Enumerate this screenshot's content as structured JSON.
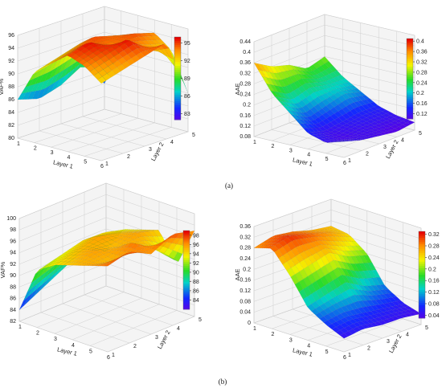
{
  "figure": {
    "captions": [
      "(a)",
      "(b)"
    ]
  },
  "chart_data": [
    {
      "type": "surface",
      "panel": "(a)",
      "position": "left",
      "title": "",
      "xlabel": "Layer 1",
      "ylabel": "Layer 2",
      "zlabel": "VAF%",
      "x_ticks": [
        "1",
        "2",
        "3",
        "4",
        "5",
        "6"
      ],
      "y_ticks": [
        "1",
        "2",
        "3",
        "4",
        "5"
      ],
      "z_ticks": [
        "80",
        "82",
        "84",
        "86",
        "88",
        "90",
        "92",
        "94",
        "96"
      ],
      "zlim": [
        80,
        96
      ],
      "colorbar_ticks": [
        "95",
        "92",
        "89",
        "86",
        "83"
      ],
      "colorbar_range": [
        82,
        96
      ],
      "grid": "x",
      "z_grid": [
        [
          86,
          91,
          93,
          95,
          94,
          92
        ],
        [
          85,
          92,
          94,
          96,
          95,
          93
        ],
        [
          86,
          93,
          95,
          94,
          96,
          94
        ],
        [
          88,
          93,
          94,
          95,
          93,
          95
        ],
        [
          84,
          90,
          93,
          94,
          92,
          86
        ]
      ]
    },
    {
      "type": "surface",
      "panel": "(a)",
      "position": "right",
      "title": "",
      "xlabel": "Layer 1",
      "ylabel": "Layer 2",
      "zlabel": "AAE",
      "x_ticks": [
        "1",
        "2",
        "3",
        "4",
        "5",
        "6"
      ],
      "y_ticks": [
        "1",
        "2",
        "3",
        "4",
        "5"
      ],
      "z_ticks": [
        "0.08",
        "0.12",
        "0.16",
        "0.2",
        "0.24",
        "0.28",
        "0.32",
        "0.36",
        "0.4",
        "0.44"
      ],
      "zlim": [
        0.08,
        0.44
      ],
      "colorbar_ticks": [
        "0.4",
        "0.36",
        "0.32",
        "0.28",
        "0.24",
        "0.2",
        "0.16",
        "0.12"
      ],
      "colorbar_range": [
        0.1,
        0.41
      ],
      "grid": "x",
      "z_grid": [
        [
          0.36,
          0.26,
          0.2,
          0.14,
          0.12,
          0.14
        ],
        [
          0.32,
          0.22,
          0.16,
          0.12,
          0.11,
          0.12
        ],
        [
          0.3,
          0.24,
          0.18,
          0.13,
          0.12,
          0.11
        ],
        [
          0.26,
          0.22,
          0.2,
          0.14,
          0.12,
          0.1
        ],
        [
          0.28,
          0.22,
          0.18,
          0.14,
          0.12,
          0.11
        ]
      ]
    },
    {
      "type": "surface",
      "panel": "(b)",
      "position": "left",
      "title": "",
      "xlabel": "Layer 1",
      "ylabel": "Layer 2",
      "zlabel": "VAF%",
      "x_ticks": [
        "1",
        "2",
        "3",
        "4",
        "5",
        "6"
      ],
      "y_ticks": [
        "1",
        "2",
        "3",
        "4",
        "5"
      ],
      "z_ticks": [
        "82",
        "84",
        "86",
        "88",
        "90",
        "92",
        "94",
        "96",
        "98",
        "100"
      ],
      "zlim": [
        82,
        100
      ],
      "colorbar_ticks": [
        "98",
        "96",
        "94",
        "92",
        "90",
        "88",
        "86",
        "84"
      ],
      "colorbar_range": [
        82,
        99
      ],
      "grid": "x",
      "z_grid": [
        [
          84,
          92,
          94,
          95,
          96,
          97
        ],
        [
          86,
          93,
          95,
          96,
          95,
          98
        ],
        [
          88,
          94,
          96,
          95,
          97,
          96
        ],
        [
          90,
          94,
          95,
          96,
          94,
          98
        ],
        [
          88,
          93,
          94,
          95,
          90,
          97
        ]
      ]
    },
    {
      "type": "surface",
      "panel": "(b)",
      "position": "right",
      "title": "",
      "xlabel": "Layer 1",
      "ylabel": "Layer 2",
      "zlabel": "AAE",
      "x_ticks": [
        "1",
        "2",
        "3",
        "4",
        "5",
        "6"
      ],
      "y_ticks": [
        "1",
        "2",
        "3",
        "4",
        "5"
      ],
      "z_ticks": [
        "0",
        "0.04",
        "0.08",
        "0.12",
        "0.16",
        "0.2",
        "0.24",
        "0.28",
        "0.32",
        "0.36"
      ],
      "zlim": [
        0,
        0.36
      ],
      "colorbar_ticks": [
        "0.32",
        "0.28",
        "0.24",
        "0.2",
        "0.16",
        "0.12",
        "0.08",
        "0.04"
      ],
      "colorbar_range": [
        0.03,
        0.33
      ],
      "grid": "x",
      "z_grid": [
        [
          0.28,
          0.3,
          0.22,
          0.12,
          0.08,
          0.05
        ],
        [
          0.3,
          0.32,
          0.24,
          0.14,
          0.09,
          0.06
        ],
        [
          0.29,
          0.3,
          0.26,
          0.16,
          0.08,
          0.05
        ],
        [
          0.27,
          0.28,
          0.22,
          0.12,
          0.07,
          0.05
        ],
        [
          0.26,
          0.25,
          0.2,
          0.1,
          0.06,
          0.04
        ]
      ]
    }
  ]
}
